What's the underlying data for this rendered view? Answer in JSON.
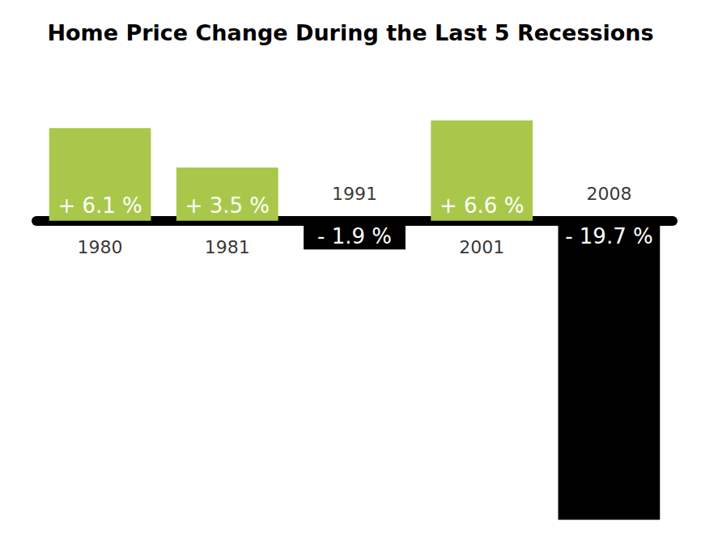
{
  "chart_data": {
    "type": "bar",
    "title": "Home Price Change During the Last 5 Recessions",
    "categories": [
      "1980",
      "1981",
      "1991",
      "2001",
      "2008"
    ],
    "values": [
      6.1,
      3.5,
      -1.9,
      6.6,
      -19.7
    ],
    "value_labels": [
      "+ 6.1 %",
      "+ 3.5 %",
      "- 1.9 %",
      "+ 6.6 %",
      "- 19.7 %"
    ],
    "colors": [
      "#a9c84b",
      "#a9c84b",
      "#000000",
      "#a9c84b",
      "#000000"
    ],
    "ylim": [
      -20,
      10
    ],
    "yticks": [
      -20,
      -15,
      -10,
      -5,
      0,
      5,
      10
    ],
    "grid": false,
    "data_labels": true,
    "tick_labels": false
  }
}
